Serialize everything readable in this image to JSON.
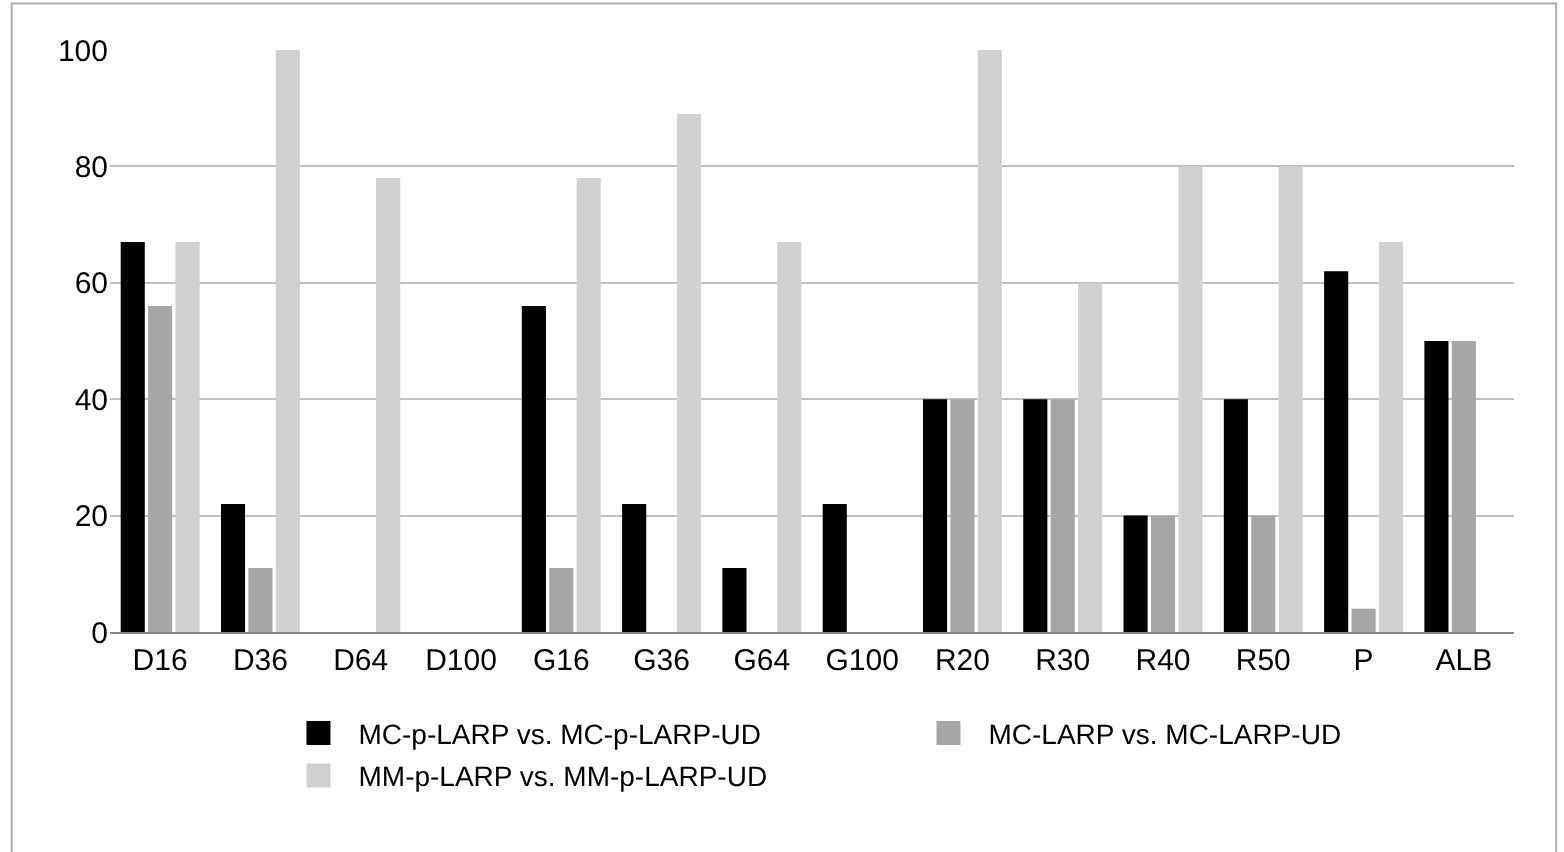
{
  "chart_data": {
    "type": "bar",
    "categories": [
      "D16",
      "D36",
      "D64",
      "D100",
      "G16",
      "G36",
      "G64",
      "G100",
      "R20",
      "R30",
      "R40",
      "R50",
      "P",
      "ALB"
    ],
    "series": [
      {
        "name": "MC-p-LARP vs. MC-p-LARP-UD",
        "color": "#000000",
        "values": [
          67,
          22,
          0,
          0,
          56,
          22,
          11,
          22,
          40,
          40,
          20,
          40,
          62,
          50
        ]
      },
      {
        "name": "MC-LARP vs. MC-LARP-UD",
        "color": "#a6a6a6",
        "values": [
          56,
          11,
          0,
          0,
          11,
          0,
          0,
          0,
          40,
          40,
          20,
          20,
          4,
          50
        ]
      },
      {
        "name": "MM-p-LARP vs. MM-p-LARP-UD",
        "color": "#d0d0d0",
        "values": [
          67,
          100,
          78,
          0,
          78,
          89,
          67,
          0,
          100,
          60,
          80,
          80,
          67,
          0
        ]
      }
    ],
    "ylim": [
      0,
      100
    ],
    "yticks": [
      0,
      20,
      40,
      60,
      80,
      100
    ],
    "grid": "y",
    "legend": "bottom"
  }
}
